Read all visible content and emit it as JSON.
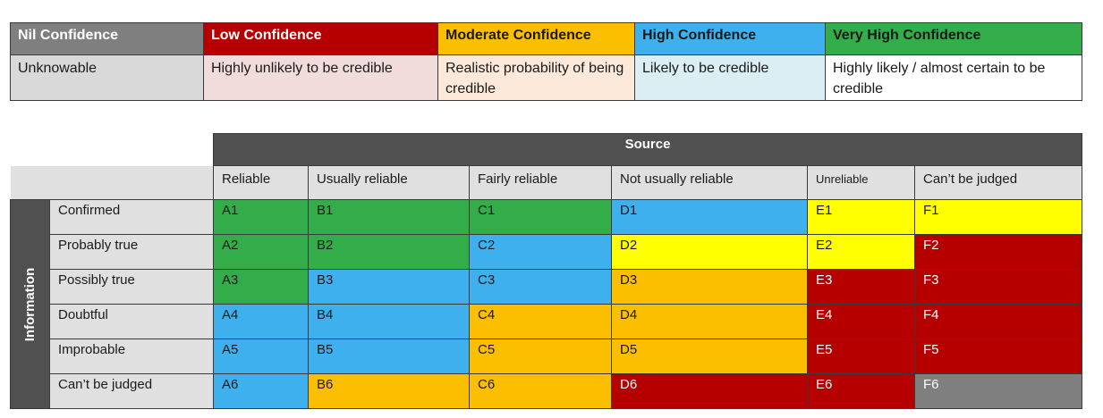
{
  "legend": [
    {
      "label": "Nil Confidence",
      "description": "Unknowable",
      "head_bg": "#7f7f7f",
      "head_fg": "#ffffff",
      "desc_bg": "#d9d9d9"
    },
    {
      "label": "Low Confidence",
      "description": "Highly unlikely to be credible",
      "head_bg": "#b60000",
      "head_fg": "#ffffff",
      "desc_bg": "#f2dcdb"
    },
    {
      "label": "Moderate Confidence",
      "description": "Realistic probability of being credible",
      "head_bg": "#fbbf00",
      "head_fg": "#1a1a1a",
      "desc_bg": "#fde9d9"
    },
    {
      "label": "High Confidence",
      "description": "Likely to be credible",
      "head_bg": "#3eb0ee",
      "head_fg": "#1a1a1a",
      "desc_bg": "#daeef3"
    },
    {
      "label": "Very High Confidence",
      "description": "Highly likely / almost certain to be credible",
      "head_bg": "#33ad4a",
      "head_fg": "#1a1a1a",
      "desc_bg": "#ffffff"
    }
  ],
  "matrix": {
    "source_title": "Source",
    "information_title": "Information",
    "columns": [
      "Reliable",
      "Usually reliable",
      "Fairly reliable",
      "Not usually reliable",
      "Unreliable",
      "Can’t be judged"
    ],
    "rows": [
      {
        "label": "Confirmed",
        "cells": [
          {
            "code": "A1",
            "color": "green"
          },
          {
            "code": "B1",
            "color": "green"
          },
          {
            "code": "C1",
            "color": "green"
          },
          {
            "code": "D1",
            "color": "blue"
          },
          {
            "code": "E1",
            "color": "yellow"
          },
          {
            "code": "F1",
            "color": "yellow"
          }
        ]
      },
      {
        "label": "Probably true",
        "cells": [
          {
            "code": "A2",
            "color": "green"
          },
          {
            "code": "B2",
            "color": "green"
          },
          {
            "code": "C2",
            "color": "blue"
          },
          {
            "code": "D2",
            "color": "yellow"
          },
          {
            "code": "E2",
            "color": "yellow"
          },
          {
            "code": "F2",
            "color": "red"
          }
        ]
      },
      {
        "label": "Possibly true",
        "cells": [
          {
            "code": "A3",
            "color": "green"
          },
          {
            "code": "B3",
            "color": "blue"
          },
          {
            "code": "C3",
            "color": "blue"
          },
          {
            "code": "D3",
            "color": "orange"
          },
          {
            "code": "E3",
            "color": "red"
          },
          {
            "code": "F3",
            "color": "red"
          }
        ]
      },
      {
        "label": "Doubtful",
        "cells": [
          {
            "code": "A4",
            "color": "blue"
          },
          {
            "code": "B4",
            "color": "blue"
          },
          {
            "code": "C4",
            "color": "orange"
          },
          {
            "code": "D4",
            "color": "orange"
          },
          {
            "code": "E4",
            "color": "red"
          },
          {
            "code": "F4",
            "color": "red"
          }
        ]
      },
      {
        "label": "Improbable",
        "cells": [
          {
            "code": "A5",
            "color": "blue"
          },
          {
            "code": "B5",
            "color": "blue"
          },
          {
            "code": "C5",
            "color": "orange"
          },
          {
            "code": "D5",
            "color": "orange"
          },
          {
            "code": "E5",
            "color": "red"
          },
          {
            "code": "F5",
            "color": "red"
          }
        ]
      },
      {
        "label": "Can’t be judged",
        "cells": [
          {
            "code": "A6",
            "color": "blue"
          },
          {
            "code": "B6",
            "color": "orange"
          },
          {
            "code": "C6",
            "color": "orange"
          },
          {
            "code": "D6",
            "color": "red"
          },
          {
            "code": "E6",
            "color": "red"
          },
          {
            "code": "F6",
            "color": "grey"
          }
        ]
      }
    ]
  }
}
